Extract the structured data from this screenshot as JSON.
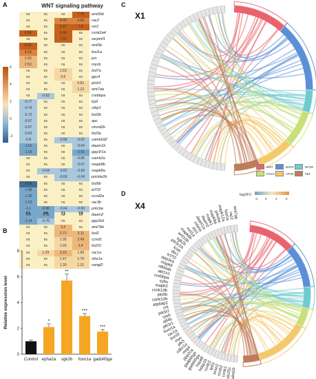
{
  "panels": {
    "a": {
      "letter": "A",
      "title": "WNT signaling pathway"
    },
    "b": {
      "letter": "B"
    },
    "c": {
      "letter": "C",
      "label": "X1"
    },
    "d": {
      "letter": "D",
      "label": "X4"
    }
  },
  "heatmap": {
    "columns": [
      "X1",
      "X4",
      "Y1",
      "Y4"
    ],
    "scale_ticks": [
      "6",
      "4",
      "2",
      "0",
      "-2"
    ],
    "rows": [
      {
        "gene": "wnt2bb",
        "v": [
          "ns",
          "ns",
          "ns",
          "7.78"
        ]
      },
      {
        "gene": "rac2",
        "v": [
          "ns",
          "ns",
          "4.05",
          "4.96"
        ]
      },
      {
        "gene": "ror2",
        "v": [
          "ns",
          "ns",
          "6.97",
          "7.8"
        ]
      },
      {
        "gene": "csnk2a4",
        "v": [
          "6.98",
          "ns",
          "6.68",
          "ns"
        ]
      },
      {
        "gene": "serpinf1",
        "v": [
          "ns",
          "ns",
          "7.03",
          "ns"
        ]
      },
      {
        "gene": "wnt5b",
        "v": [
          "6.90",
          "ns",
          "ns",
          "ns"
        ]
      },
      {
        "gene": "fosl1a",
        "v": [
          "4.19",
          "ns",
          "ns",
          "ns"
        ]
      },
      {
        "gene": "jun",
        "v": [
          "2.43",
          "ns",
          "ns",
          "ns"
        ]
      },
      {
        "gene": "mycb",
        "v": [
          "2.53",
          "ns",
          "ns",
          "ns"
        ]
      },
      {
        "gene": "fzd7a",
        "v": [
          "ns",
          "ns",
          "1.53",
          "ns"
        ]
      },
      {
        "gene": "gpc4",
        "v": [
          "ns",
          "ns",
          "0.8",
          "ns"
        ]
      },
      {
        "gene": "plcb3",
        "v": [
          "ns",
          "ns",
          "ns",
          "0.81"
        ]
      },
      {
        "gene": "wnt7aa",
        "v": [
          "ns",
          "ns",
          "ns",
          "1.22"
        ]
      },
      {
        "gene": "crebbpa",
        "v": [
          "ns",
          "-0.63",
          "ns",
          "ns"
        ]
      },
      {
        "gene": "lrp6",
        "v": [
          "-0.77",
          "ns",
          "ns",
          "ns"
        ]
      },
      {
        "gene": "ctbp1",
        "v": [
          "-0.74",
          "ns",
          "ns",
          "ns"
        ]
      },
      {
        "gene": "fzd3b",
        "v": [
          "-0.73",
          "ns",
          "ns",
          "ns"
        ]
      },
      {
        "gene": "apc",
        "v": [
          "-0.67",
          "ns",
          "ns",
          "ns"
        ]
      },
      {
        "gene": "ctnnd2b",
        "v": [
          "-0.67",
          "ns",
          "ns",
          "ns"
        ]
      },
      {
        "gene": "fzd3a",
        "v": [
          "-0.62",
          "ns",
          "ns",
          "ns"
        ]
      },
      {
        "gene": "camk2d2",
        "v": [
          "-0.8",
          "ns",
          "-0.58",
          "-0.62"
        ]
      },
      {
        "gene": "daam1b",
        "v": [
          "-1.01",
          "ns",
          "ns",
          "-0.64"
        ]
      },
      {
        "gene": "ppp3r1a",
        "v": [
          "-1.03",
          "ns",
          "ns",
          "-0.91"
        ]
      },
      {
        "gene": "camk2a",
        "v": [
          "ns",
          "ns",
          "ns",
          "-0.85"
        ]
      },
      {
        "gene": "mapk8b",
        "v": [
          "ns",
          "ns",
          "ns",
          "-0.67"
        ]
      },
      {
        "gene": "mapk8a",
        "v": [
          "ns",
          "-0.64",
          "-0.62",
          "-0.69"
        ]
      },
      {
        "gene": "prickle2b",
        "v": [
          "ns",
          "ns",
          "-0.69",
          "-0.64"
        ]
      },
      {
        "gene": "fzd9b",
        "v": [
          "-2.06",
          "ns",
          "ns",
          "ns"
        ]
      },
      {
        "gene": "tcf7l2",
        "v": [
          "-1.48",
          "ns",
          "ns",
          "ns"
        ]
      },
      {
        "gene": "ccnd2a",
        "v": [
          "-1.33",
          "ns",
          "ns",
          "ns"
        ]
      },
      {
        "gene": "rac3b",
        "v": [
          "-1.23",
          "ns",
          "ns",
          "ns"
        ]
      },
      {
        "gene": "prkcba",
        "v": [
          "-1.1",
          "-0.96",
          "-0.64",
          "-0.69"
        ]
      },
      {
        "gene": "daam2",
        "v": [
          "-1.2",
          "-1.11",
          "ns",
          "ns"
        ]
      },
      {
        "gene": "ppp3cb",
        "v": [
          "-1.14",
          "-0.76",
          "ns",
          "ns"
        ]
      },
      {
        "gene": "wnt7bb",
        "v": [
          "ns",
          "ns",
          "3.2",
          "ns"
        ]
      },
      {
        "gene": "fzd2",
        "v": [
          "ns",
          "ns",
          "2.72",
          "3.11"
        ]
      },
      {
        "gene": "ccnd1",
        "v": [
          "ns",
          "ns",
          "1.95",
          "2.49"
        ]
      },
      {
        "gene": "fzd10",
        "v": [
          "ns",
          "ns",
          "1.65",
          "2.4"
        ]
      },
      {
        "gene": "rac1a",
        "v": [
          "ns",
          "1.29",
          "2.23",
          "1.96"
        ]
      },
      {
        "gene": "sfrp1a",
        "v": [
          "ns",
          "ns",
          "1.47",
          "1.76"
        ]
      },
      {
        "gene": "vangl2",
        "v": [
          "ns",
          "ns",
          "1.39",
          "1.31"
        ]
      }
    ]
  },
  "chart_data": {
    "type": "bar",
    "categories": [
      "Control",
      "epha2a",
      "sgk2b",
      "foxo1a",
      "gadd45ga"
    ],
    "values": [
      1.0,
      2.1,
      5.7,
      2.95,
      1.75
    ],
    "errors": [
      0.1,
      0.25,
      0.5,
      0.2,
      0.15
    ],
    "significance": [
      "",
      "*",
      "**",
      "***",
      "***"
    ],
    "ylabel": "Relative expression level",
    "ylim": [
      0,
      8
    ],
    "yticks": [
      "0",
      "2",
      "4",
      "6",
      "8"
    ],
    "colors": {
      "control": "#111111",
      "treated": "#f5a623"
    }
  },
  "chord_legend": {
    "items": [
      {
        "label": "WNT",
        "color": "#e8636e"
      },
      {
        "label": "MAPK",
        "color": "#5b8fd6"
      },
      {
        "label": "MTOR",
        "color": "#6fcbcf"
      },
      {
        "label": "FOXO",
        "color": "#c9e07a"
      },
      {
        "label": "APOP",
        "color": "#f4c96a"
      },
      {
        "label": "P53",
        "color": "#c07b5a"
      }
    ],
    "logfc_label": "log2FC",
    "logfc_ticks": [
      "-4",
      "0",
      "4",
      "8"
    ]
  },
  "chord_x4_genes": [
    "fuba1b",
    "cdc25c",
    "ccnb1",
    "ccnb2",
    "sesn2",
    "tp53",
    "ccnb3",
    "hsbp1b",
    "hspa8",
    "gadd45ga",
    "gadd45gb",
    "ppp2ca",
    "mrg4",
    "cdkn1a",
    "plk3",
    "myc",
    "fmnl3",
    "rac1a",
    "foxo1a",
    "pik3r1",
    "atf4b",
    "rps6",
    "pik3r2",
    "crk",
    "atp6ap2",
    "csnk1da",
    "akt3b",
    "csnk1db",
    "mapk3",
    "sybu",
    "crebbpa",
    "akt1s1",
    "nfkbiab",
    "mapk6",
    "ppp3cb",
    "tcf7l2",
    "dtx1",
    "kras",
    "pik3c2a",
    "sgk2b",
    "wnt10b",
    "mapk8b",
    "mcl1a",
    "ets1",
    "mlana",
    "daam1a",
    "daam2",
    "mapk1",
    "mapk8a",
    "prkcba",
    "mapk12a",
    "fosl1a",
    "rac2",
    "wnt7ab"
  ]
}
